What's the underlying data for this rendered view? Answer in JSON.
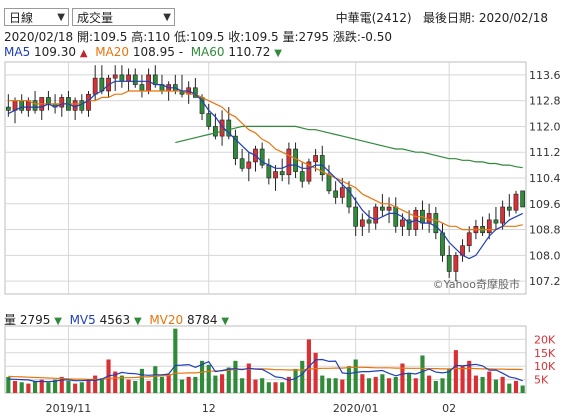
{
  "header": {
    "period_select": "日線",
    "indicator_select": "成交量",
    "stock": "中華電(2412)",
    "last_date_label": "最後日期: 2020/02/18"
  },
  "info": {
    "date": "2020/02/18",
    "open_label": "開:109.5",
    "high_label": "高:110",
    "low_label": "低:109.5",
    "close_label": "收:109.5",
    "volume_label": "量:2795",
    "change_label": "漲跌:-0.50",
    "ma5_label": "MA5",
    "ma5_value": "109.30",
    "ma5_arrow": "▲",
    "ma20_label": "MA20",
    "ma20_value": "108.95",
    "ma20_arrow": "-",
    "ma60_label": "MA60",
    "ma60_value": "110.72",
    "ma60_arrow": "▼",
    "vol_label": "量",
    "vol_value": "2795",
    "vol_arrow": "▼",
    "mv5_label": "MV5",
    "mv5_value": "4563",
    "mv5_arrow": "▼",
    "mv20_label": "MV20",
    "mv20_value": "8784",
    "mv20_arrow": "▼"
  },
  "watermark": "©Yahoo奇摩股市",
  "colors": {
    "up": "#d83035",
    "down": "#2f8a3a",
    "flat": "#777777",
    "ma5": "#1f3fb8",
    "ma20": "#e8750c",
    "ma60": "#2f8a3a",
    "grid": "#d7d7d7"
  },
  "chart_data": [
    {
      "type": "candlestick",
      "title": "",
      "ylim": [
        106.8,
        114.0
      ],
      "yticks": [
        107.2,
        108.0,
        108.8,
        109.6,
        110.4,
        111.2,
        112.0,
        112.8,
        113.6
      ],
      "xticks": [
        {
          "index": 9,
          "label": "2019/11"
        },
        {
          "index": 30,
          "label": "12"
        },
        {
          "index": 52,
          "label": "2020/01"
        },
        {
          "index": 66,
          "label": "02"
        }
      ],
      "ohlc": [
        [
          112.6,
          113.0,
          112.3,
          112.5
        ],
        [
          112.5,
          112.9,
          112.1,
          112.8
        ],
        [
          112.8,
          113.0,
          112.4,
          112.5
        ],
        [
          112.5,
          112.9,
          112.3,
          112.8
        ],
        [
          112.8,
          113.1,
          112.4,
          112.5
        ],
        [
          112.5,
          112.9,
          112.2,
          112.9
        ],
        [
          112.9,
          113.1,
          112.5,
          112.7
        ],
        [
          112.7,
          113.0,
          112.4,
          112.6
        ],
        [
          112.6,
          113.0,
          112.3,
          112.9
        ],
        [
          112.9,
          113.1,
          112.5,
          112.5
        ],
        [
          112.5,
          112.9,
          112.2,
          112.8
        ],
        [
          112.8,
          113.0,
          112.4,
          112.5
        ],
        [
          112.5,
          113.1,
          112.3,
          113.0
        ],
        [
          113.0,
          113.9,
          112.8,
          113.5
        ],
        [
          113.5,
          113.9,
          113.0,
          113.1
        ],
        [
          113.1,
          113.6,
          112.9,
          113.5
        ],
        [
          113.5,
          113.9,
          113.1,
          113.6
        ],
        [
          113.6,
          113.9,
          113.2,
          113.4
        ],
        [
          113.4,
          113.8,
          113.1,
          113.6
        ],
        [
          113.6,
          113.8,
          113.2,
          113.3
        ],
        [
          113.3,
          113.6,
          112.9,
          113.1
        ],
        [
          113.1,
          113.8,
          113.0,
          113.6
        ],
        [
          113.6,
          113.9,
          113.2,
          113.3
        ],
        [
          113.3,
          113.6,
          113.0,
          113.1
        ],
        [
          113.1,
          113.4,
          112.8,
          113.3
        ],
        [
          113.3,
          113.6,
          113.0,
          113.1
        ],
        [
          113.1,
          113.6,
          112.9,
          113.0
        ],
        [
          113.0,
          113.4,
          112.7,
          113.2
        ],
        [
          113.2,
          113.5,
          112.9,
          112.9
        ],
        [
          112.9,
          113.0,
          112.2,
          112.4
        ],
        [
          112.4,
          112.7,
          111.9,
          112.0
        ],
        [
          112.0,
          112.4,
          111.6,
          111.7
        ],
        [
          111.7,
          112.5,
          111.4,
          112.2
        ],
        [
          112.2,
          112.6,
          111.6,
          111.7
        ],
        [
          111.7,
          111.9,
          110.8,
          111.0
        ],
        [
          111.0,
          111.3,
          110.6,
          110.7
        ],
        [
          110.7,
          111.2,
          110.3,
          110.9
        ],
        [
          110.9,
          111.4,
          110.6,
          111.3
        ],
        [
          111.3,
          111.5,
          110.7,
          110.8
        ],
        [
          110.8,
          111.0,
          110.2,
          110.4
        ],
        [
          110.4,
          110.8,
          110.0,
          110.6
        ],
        [
          110.6,
          111.0,
          110.3,
          110.5
        ],
        [
          110.5,
          111.5,
          110.2,
          111.3
        ],
        [
          111.3,
          111.5,
          110.4,
          110.6
        ],
        [
          110.6,
          110.9,
          110.1,
          110.3
        ],
        [
          110.3,
          111.0,
          110.2,
          110.9
        ],
        [
          110.9,
          111.3,
          110.6,
          111.1
        ],
        [
          111.1,
          111.4,
          110.3,
          110.5
        ],
        [
          110.5,
          110.8,
          109.9,
          110.0
        ],
        [
          110.0,
          110.3,
          109.6,
          109.8
        ],
        [
          109.8,
          110.4,
          109.6,
          110.1
        ],
        [
          110.1,
          110.3,
          109.3,
          109.5
        ],
        [
          109.5,
          109.8,
          108.6,
          108.9
        ],
        [
          108.9,
          109.3,
          108.6,
          109.1
        ],
        [
          109.1,
          109.4,
          108.7,
          109.0
        ],
        [
          109.0,
          109.6,
          108.8,
          109.5
        ],
        [
          109.5,
          109.9,
          109.2,
          109.4
        ],
        [
          109.4,
          109.8,
          109.0,
          109.5
        ],
        [
          109.5,
          109.8,
          108.7,
          108.9
        ],
        [
          108.9,
          109.3,
          108.6,
          109.1
        ],
        [
          109.1,
          109.4,
          108.6,
          108.8
        ],
        [
          108.8,
          109.5,
          108.6,
          109.4
        ],
        [
          109.4,
          109.7,
          108.8,
          109.0
        ],
        [
          109.0,
          109.6,
          108.7,
          109.3
        ],
        [
          109.3,
          109.5,
          108.5,
          108.7
        ],
        [
          108.7,
          109.0,
          107.8,
          108.0
        ],
        [
          108.0,
          108.3,
          107.3,
          107.5
        ],
        [
          107.5,
          108.1,
          107.2,
          108.0
        ],
        [
          108.0,
          108.5,
          107.8,
          108.3
        ],
        [
          108.3,
          108.9,
          108.1,
          108.7
        ],
        [
          108.7,
          109.1,
          108.5,
          108.9
        ],
        [
          108.9,
          109.2,
          108.6,
          108.7
        ],
        [
          108.7,
          109.3,
          108.5,
          109.1
        ],
        [
          109.1,
          109.5,
          108.8,
          109.0
        ],
        [
          109.0,
          109.7,
          108.8,
          109.5
        ],
        [
          109.5,
          109.9,
          109.2,
          109.4
        ],
        [
          109.4,
          110.0,
          109.3,
          109.9
        ],
        [
          110.0,
          110.0,
          109.5,
          109.5
        ]
      ],
      "ma5": [
        112.4,
        112.5,
        112.6,
        112.6,
        112.6,
        112.6,
        112.7,
        112.6,
        112.7,
        112.7,
        112.6,
        112.7,
        112.8,
        113.0,
        113.1,
        113.3,
        113.4,
        113.4,
        113.4,
        113.4,
        113.4,
        113.4,
        113.3,
        113.3,
        113.2,
        113.2,
        113.1,
        113.1,
        113.0,
        112.8,
        112.5,
        112.3,
        112.0,
        111.8,
        111.6,
        111.4,
        111.2,
        111.1,
        110.9,
        110.8,
        110.7,
        110.7,
        110.8,
        110.8,
        110.7,
        110.7,
        110.8,
        110.8,
        110.6,
        110.4,
        110.2,
        110.0,
        109.7,
        109.4,
        109.2,
        109.1,
        109.2,
        109.3,
        109.3,
        109.2,
        109.0,
        109.1,
        109.0,
        109.0,
        108.9,
        108.7,
        108.4,
        108.2,
        108.0,
        107.9,
        108.0,
        108.3,
        108.6,
        108.8,
        108.9,
        109.1,
        109.2,
        109.3
      ],
      "ma20": [
        112.8,
        112.8,
        112.8,
        112.8,
        112.7,
        112.7,
        112.7,
        112.7,
        112.7,
        112.7,
        112.7,
        112.7,
        112.8,
        112.8,
        112.9,
        112.9,
        113.0,
        113.0,
        113.1,
        113.1,
        113.1,
        113.1,
        113.1,
        113.1,
        113.1,
        113.1,
        113.1,
        113.0,
        113.0,
        112.9,
        112.8,
        112.7,
        112.6,
        112.4,
        112.3,
        112.1,
        111.9,
        111.8,
        111.6,
        111.5,
        111.3,
        111.2,
        111.1,
        111.0,
        110.9,
        110.8,
        110.7,
        110.6,
        110.5,
        110.4,
        110.3,
        110.2,
        110.1,
        109.9,
        109.8,
        109.7,
        109.6,
        109.6,
        109.5,
        109.4,
        109.3,
        109.2,
        109.2,
        109.1,
        109.1,
        109.0,
        108.9,
        108.9,
        108.8,
        108.8,
        108.8,
        108.8,
        108.8,
        108.8,
        108.9,
        108.9,
        108.9,
        108.95
      ],
      "ma60": [
        null,
        null,
        null,
        null,
        null,
        null,
        null,
        null,
        null,
        null,
        null,
        null,
        null,
        null,
        null,
        null,
        null,
        null,
        null,
        null,
        null,
        null,
        null,
        null,
        null,
        111.5,
        111.55,
        111.6,
        111.65,
        111.7,
        111.75,
        111.8,
        111.85,
        111.9,
        111.95,
        112.0,
        112.0,
        112.0,
        112.0,
        112.0,
        112.0,
        112.0,
        112.0,
        112.0,
        111.95,
        111.9,
        111.9,
        111.85,
        111.8,
        111.75,
        111.7,
        111.65,
        111.6,
        111.55,
        111.5,
        111.45,
        111.4,
        111.35,
        111.3,
        111.3,
        111.25,
        111.2,
        111.2,
        111.15,
        111.1,
        111.05,
        111.0,
        111.0,
        110.95,
        110.95,
        110.9,
        110.9,
        110.85,
        110.85,
        110.8,
        110.8,
        110.75,
        110.72
      ]
    },
    {
      "type": "bar",
      "title": "",
      "ylim": [
        0,
        25000
      ],
      "yticks": [
        {
          "value": 5000,
          "label": "5K"
        },
        {
          "value": 10000,
          "label": "10K"
        },
        {
          "value": 15000,
          "label": "15K"
        },
        {
          "value": 20000,
          "label": "20K"
        }
      ],
      "volume": [
        6000,
        4500,
        4000,
        3500,
        4500,
        5000,
        4000,
        5000,
        6000,
        4500,
        3500,
        4000,
        5000,
        6500,
        5500,
        12500,
        8000,
        6500,
        5000,
        4500,
        9000,
        4500,
        10000,
        6000,
        7000,
        24000,
        5000,
        6000,
        6000,
        12000,
        10500,
        6500,
        7000,
        9500,
        12000,
        5500,
        11000,
        5000,
        5500,
        4000,
        4000,
        4000,
        6000,
        9000,
        12000,
        20000,
        15000,
        6500,
        5500,
        5500,
        5000,
        10000,
        12500,
        7000,
        5500,
        6000,
        7000,
        5500,
        6000,
        11000,
        7500,
        5500,
        14000,
        6500,
        4500,
        5500,
        9000,
        16000,
        10000,
        12000,
        6500,
        6000,
        8000,
        5000,
        6000,
        3500,
        4500,
        2795
      ],
      "mv5": [
        5200,
        5100,
        5000,
        4900,
        4300,
        4300,
        4200,
        4400,
        4900,
        4900,
        4600,
        4600,
        4800,
        4700,
        5200,
        6400,
        6800,
        7700,
        7300,
        7200,
        6800,
        6600,
        6800,
        6800,
        7100,
        10300,
        10400,
        10600,
        9600,
        10600,
        11700,
        8000,
        8400,
        8900,
        9100,
        8700,
        9200,
        8900,
        8800,
        7500,
        6000,
        5700,
        4700,
        5400,
        7000,
        9800,
        12400,
        12500,
        11800,
        11900,
        7500,
        7200,
        7700,
        8000,
        8000,
        8200,
        8400,
        7300,
        6400,
        7100,
        7400,
        7100,
        8000,
        8900,
        7800,
        7500,
        7900,
        10300,
        10100,
        10400,
        10700,
        10100,
        8500,
        8600,
        7400,
        6000,
        5500,
        4563
      ],
      "mv20": [
        6200,
        6100,
        6000,
        5900,
        5800,
        5700,
        5600,
        5500,
        5400,
        5300,
        5200,
        5200,
        5100,
        5100,
        5100,
        5500,
        5600,
        5700,
        5700,
        5800,
        6000,
        6000,
        6300,
        6400,
        6500,
        7400,
        7400,
        7500,
        7500,
        7800,
        8100,
        8200,
        8300,
        8500,
        8800,
        8900,
        9000,
        9000,
        9000,
        8900,
        8700,
        8700,
        8600,
        8600,
        8600,
        8900,
        9100,
        9200,
        9200,
        9300,
        9300,
        9500,
        9600,
        9600,
        9500,
        9400,
        9400,
        9400,
        9300,
        9300,
        9200,
        9200,
        9200,
        9100,
        9100,
        9000,
        9000,
        9100,
        9100,
        9200,
        9100,
        9000,
        9000,
        8900,
        8900,
        8800,
        8800,
        8784
      ]
    }
  ]
}
